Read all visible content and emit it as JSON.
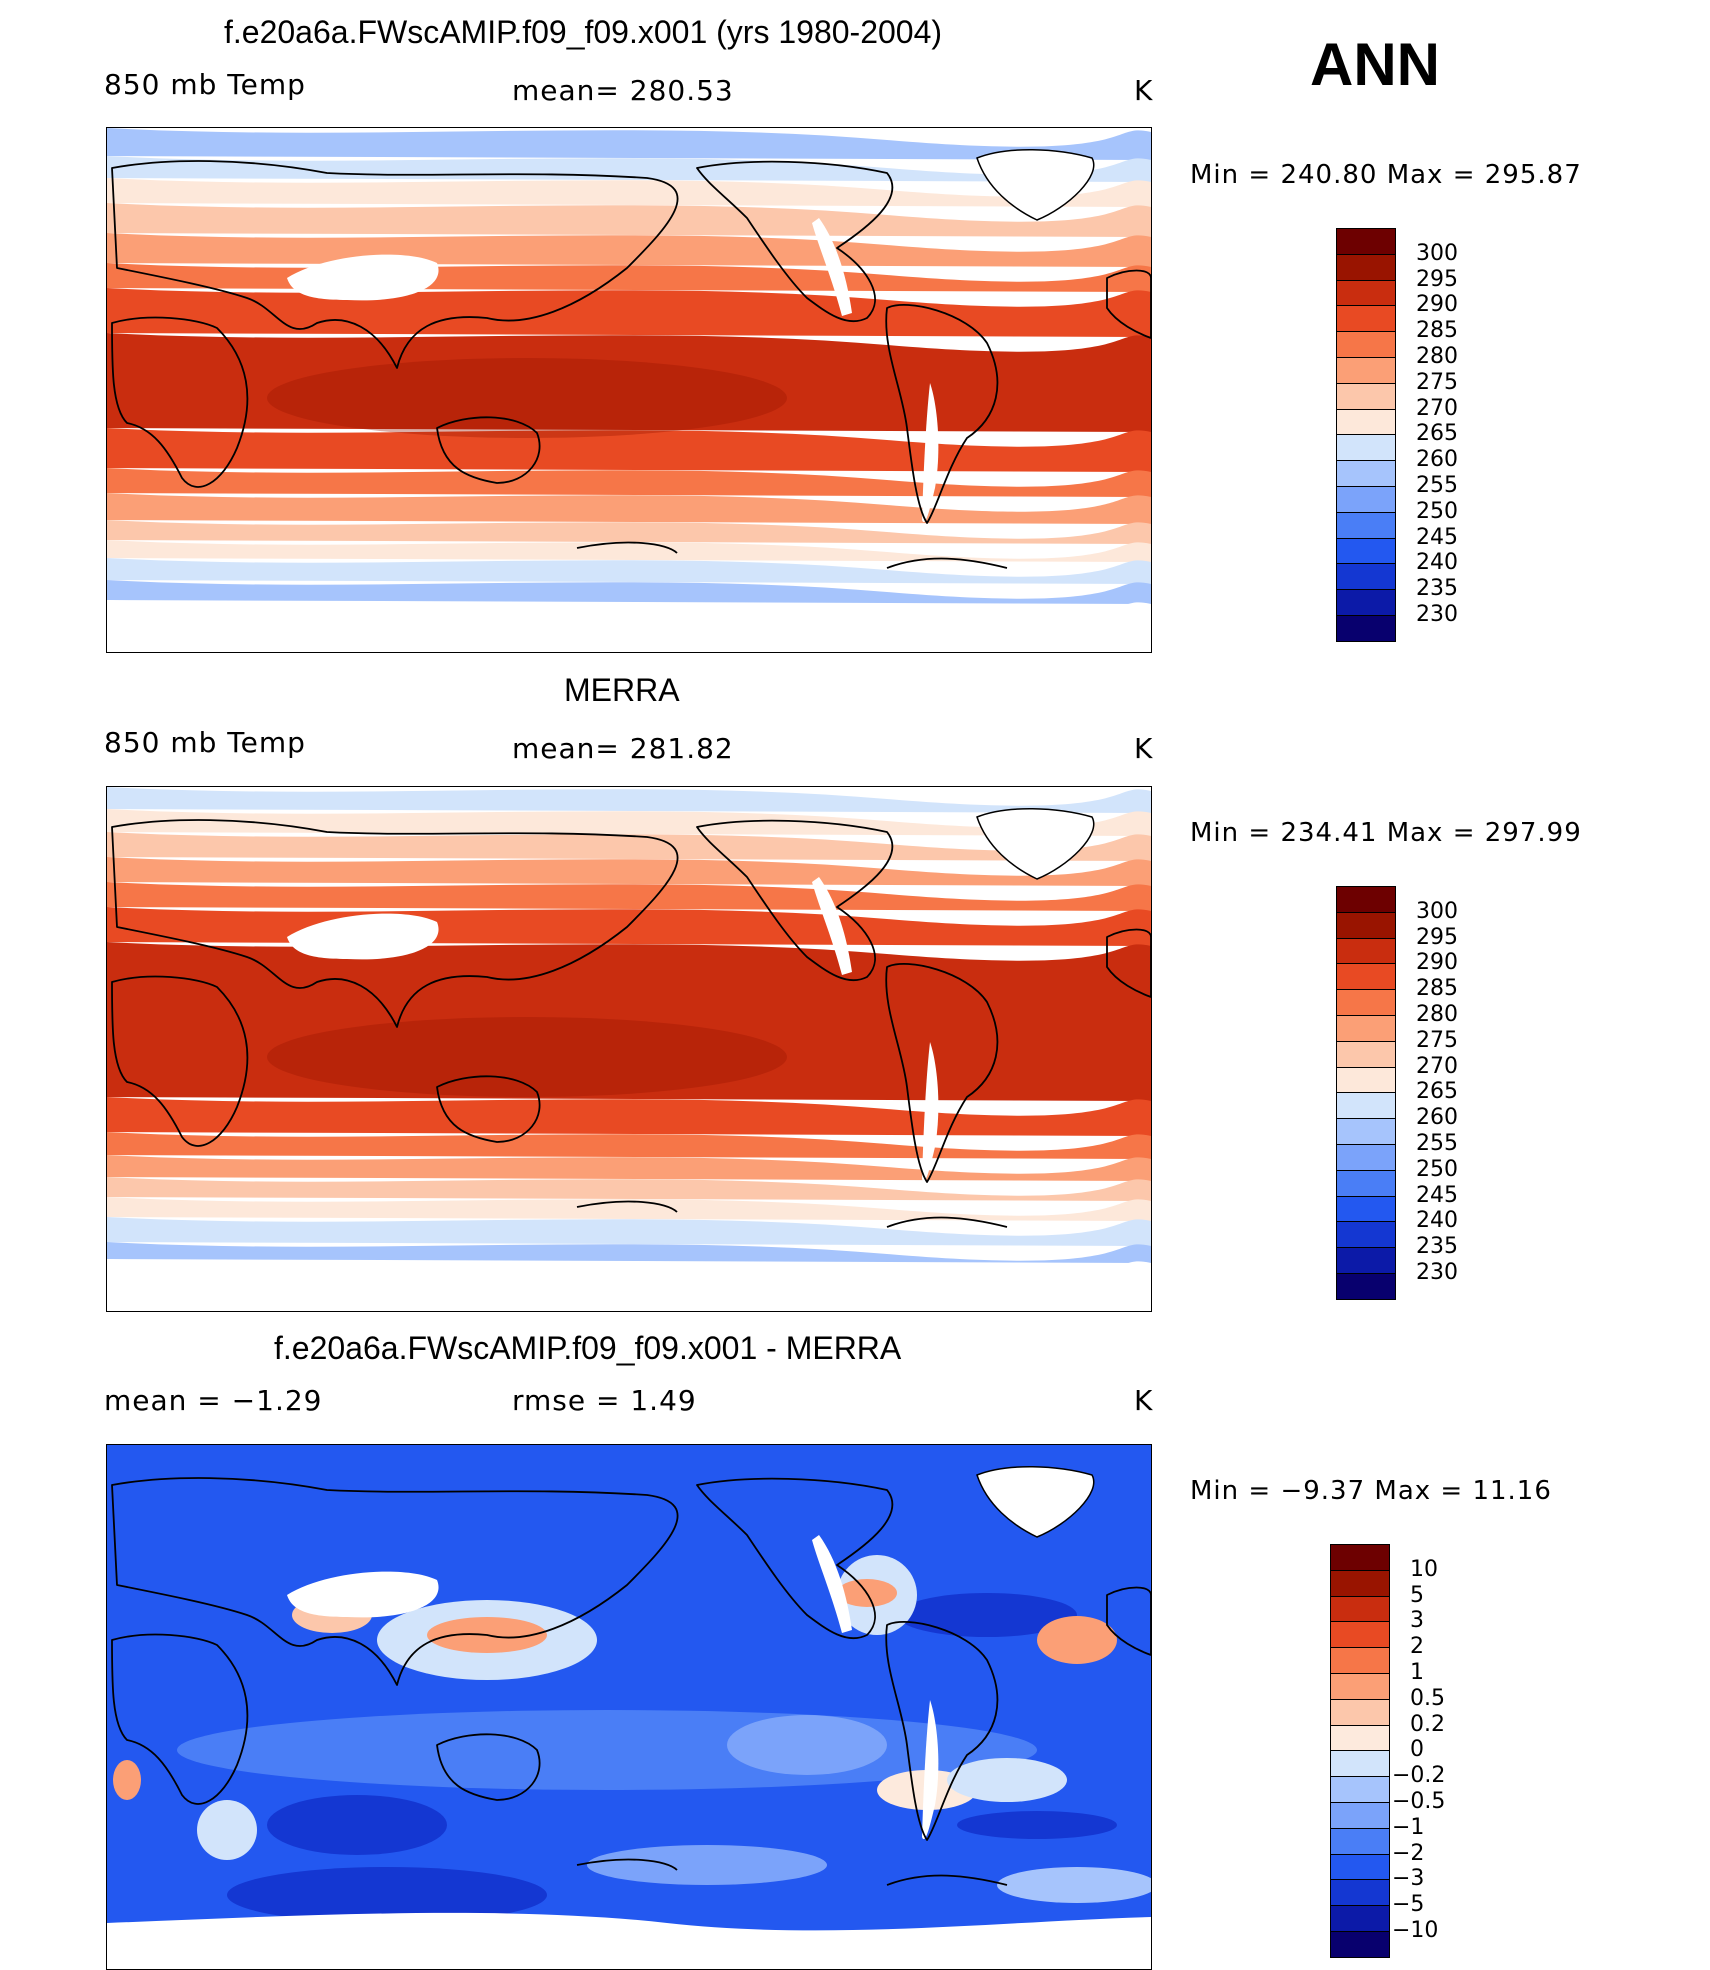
{
  "season": "ANN",
  "colors": {
    "temp_scale": [
      "#08006e",
      "#0c1aa8",
      "#1437d2",
      "#2358f0",
      "#4a7ef6",
      "#7ba3fa",
      "#a6c4fc",
      "#d2e4fb",
      "#fde8da",
      "#fcc7ab",
      "#fb9f76",
      "#f67648",
      "#e84a23",
      "#c92d0f",
      "#991400",
      "#6d0000"
    ],
    "diff_scale": [
      "#08006e",
      "#0c1aa8",
      "#1437d2",
      "#2358f0",
      "#4a7ef6",
      "#7ba3fa",
      "#a6c4fc",
      "#d2e4fb",
      "#fdeadd",
      "#fcc7ab",
      "#fb9f76",
      "#f67648",
      "#e84a23",
      "#c92d0f",
      "#991400",
      "#6d0000"
    ]
  },
  "panels": [
    {
      "id": "model",
      "title": "f.e20a6a.FWscAMIP.f09_f09.x001 (yrs 1980-2004)",
      "left_label": "850 mb Temp",
      "center_label": "mean=  280.53",
      "units": "K",
      "minmax": "Min  =  240.80  Max  =  295.87",
      "colorbar_labels": [
        "300",
        "295",
        "290",
        "285",
        "280",
        "275",
        "270",
        "265",
        "260",
        "255",
        "250",
        "245",
        "240",
        "235",
        "230"
      ]
    },
    {
      "id": "obs",
      "title": "MERRA",
      "left_label": "850 mb Temp",
      "center_label": "mean=  281.82",
      "units": "K",
      "minmax": "Min  =  234.41  Max  =  297.99",
      "colorbar_labels": [
        "300",
        "295",
        "290",
        "285",
        "280",
        "275",
        "270",
        "265",
        "260",
        "255",
        "250",
        "245",
        "240",
        "235",
        "230"
      ]
    },
    {
      "id": "diff",
      "title": "f.e20a6a.FWscAMIP.f09_f09.x001 - MERRA",
      "left_label": "mean  =   −1.29",
      "center_label": "rmse  =     1.49",
      "units": "K",
      "minmax": "Min  =   −9.37  Max  =   11.16",
      "colorbar_labels": [
        "10",
        "5",
        "3",
        "2",
        "1",
        "0.5",
        "0.2",
        "0",
        "−0.2",
        "−0.5",
        "−1",
        "−2",
        "−3",
        "−5",
        "−10"
      ]
    }
  ]
}
